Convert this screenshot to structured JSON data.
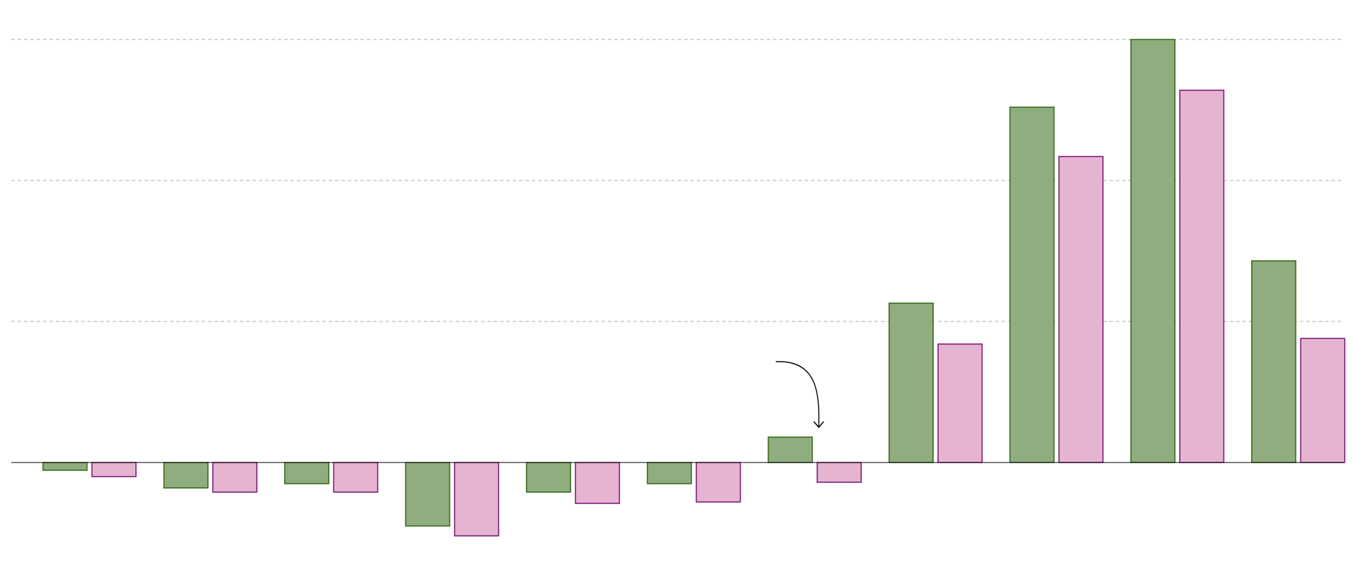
{
  "chart_data": {
    "type": "bar",
    "categories": [
      null,
      null,
      null,
      null,
      null,
      null,
      null,
      null,
      null,
      null,
      null
    ],
    "series": [
      {
        "color": "#8fad7e",
        "values": [
          -0.55,
          -1.8,
          -1.5,
          -4.5,
          -2.1,
          -1.5,
          1.8,
          11.3,
          25.2,
          30.0,
          14.3
        ]
      },
      {
        "color": "#e6b3d1",
        "values": [
          -1.0,
          -2.1,
          -2.1,
          -5.2,
          -2.9,
          -2.8,
          -1.4,
          8.4,
          21.7,
          26.4,
          8.8
        ]
      }
    ],
    "ylim": [
      -8.9,
      32.8
    ],
    "yticks": [
      10,
      20,
      30
    ],
    "grid": true
  }
}
